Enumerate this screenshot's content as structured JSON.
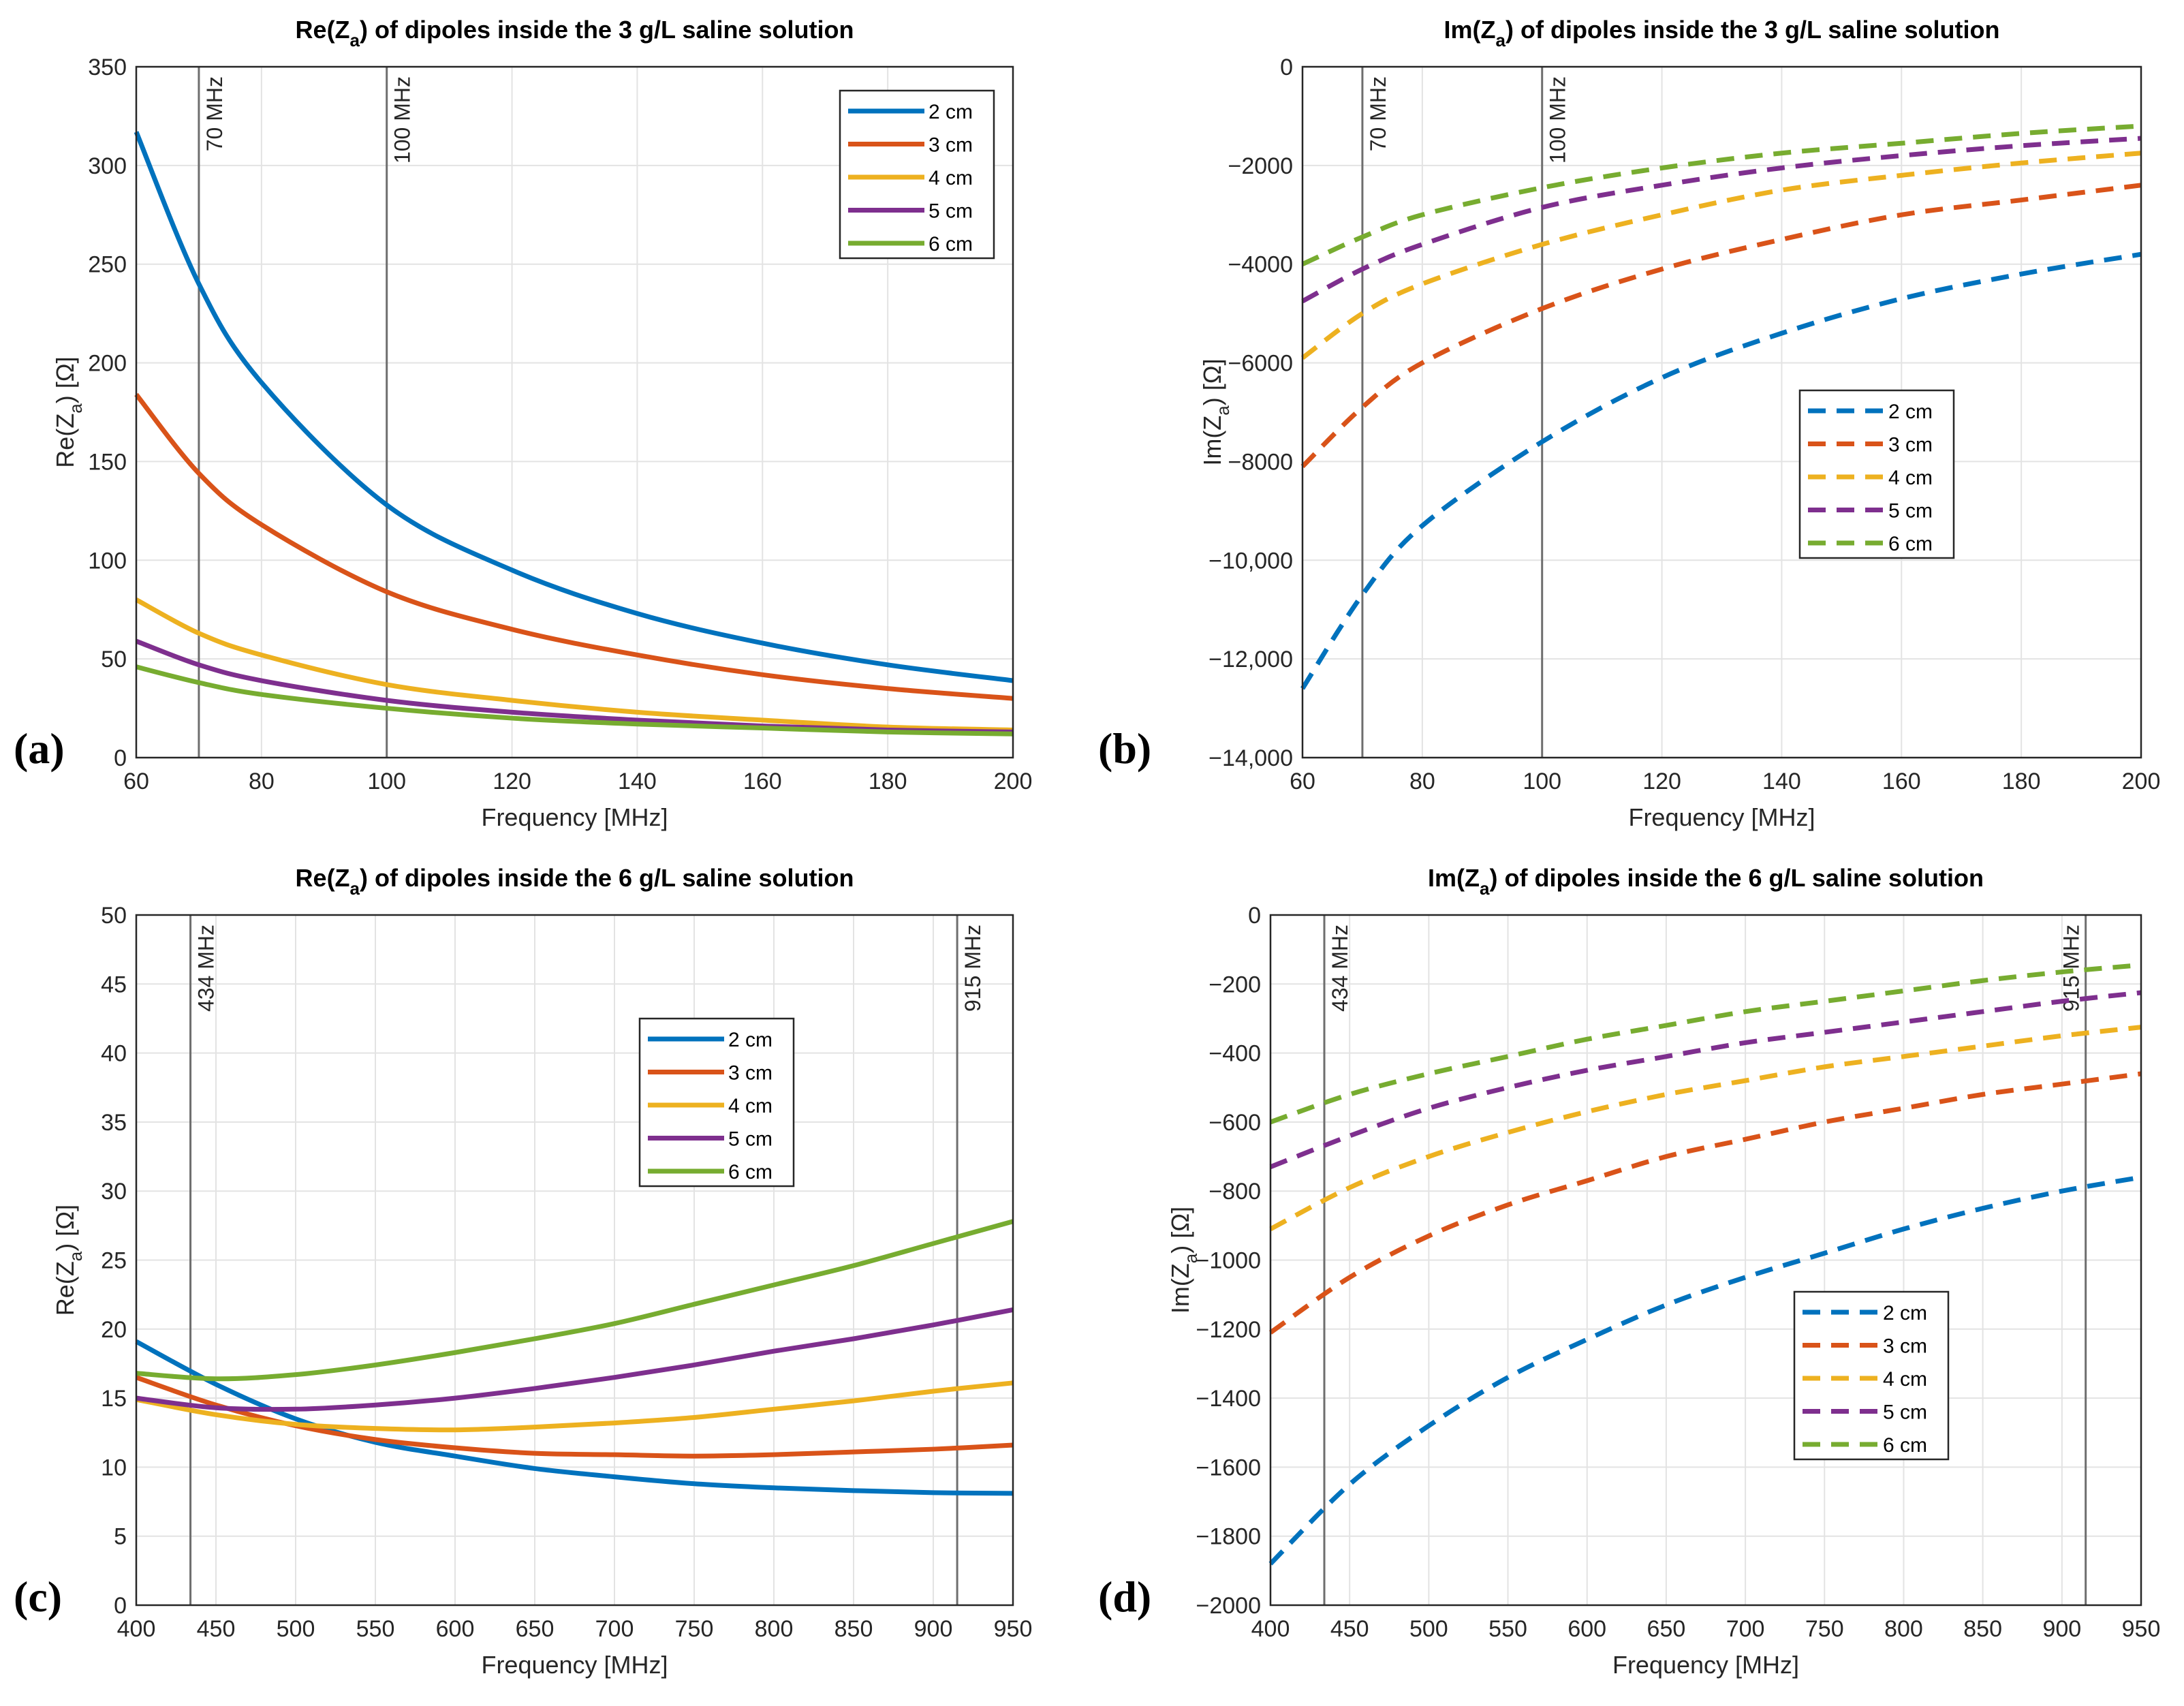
{
  "chart_data": [
    {
      "type": "line",
      "panel_label": "(a)",
      "title": {
        "pre": "Re(Z",
        "sub": "a",
        "post": ") of dipoles inside the 3 g/L saline solution"
      },
      "xlabel": "Frequency [MHz]",
      "ylabel": {
        "pre": "Re(Z",
        "sub": "a",
        "post": ") [Ω]"
      },
      "xlim": [
        60,
        200
      ],
      "ylim": [
        0,
        350
      ],
      "xticks": [
        60,
        80,
        100,
        120,
        140,
        160,
        180,
        200
      ],
      "xtick_labels": [
        "60",
        "80",
        "100",
        "120",
        "140",
        "160",
        "180",
        "200"
      ],
      "yticks": [
        0,
        50,
        100,
        150,
        200,
        250,
        300,
        350
      ],
      "ytick_labels": [
        "0",
        "50",
        "100",
        "150",
        "200",
        "250",
        "300",
        "350"
      ],
      "grid": true,
      "legend_position": "top-right",
      "line_style": "solid",
      "markers": [
        {
          "x": 70,
          "label": "70 MHz"
        },
        {
          "x": 100,
          "label": "100 MHz"
        }
      ],
      "x": [
        60,
        70,
        80,
        100,
        120,
        140,
        160,
        180,
        200
      ],
      "series": [
        {
          "name": "2 cm",
          "color": "#0072BD",
          "values": [
            317,
            240,
            190,
            128,
            95,
            73,
            58,
            47,
            39
          ]
        },
        {
          "name": "3 cm",
          "color": "#D95319",
          "values": [
            184,
            144,
            118,
            84,
            65,
            52,
            42,
            35,
            30
          ]
        },
        {
          "name": "4 cm",
          "color": "#EDB120",
          "values": [
            80,
            63,
            52,
            37,
            29,
            23,
            19,
            15.5,
            14
          ]
        },
        {
          "name": "5 cm",
          "color": "#7E2F8E",
          "values": [
            59,
            47,
            39,
            29,
            23,
            19,
            16,
            14,
            13
          ]
        },
        {
          "name": "6 cm",
          "color": "#77AC30",
          "values": [
            46,
            38,
            32,
            25,
            20,
            17,
            15,
            13,
            12
          ]
        }
      ]
    },
    {
      "type": "line",
      "panel_label": "(b)",
      "title": {
        "pre": "Im(Z",
        "sub": "a",
        "post": ") of dipoles inside the 3 g/L saline solution"
      },
      "xlabel": "Frequency [MHz]",
      "ylabel": {
        "pre": "Im(Z",
        "sub": "a",
        "post": ") [Ω]"
      },
      "xlim": [
        60,
        200
      ],
      "ylim": [
        -14000,
        0
      ],
      "xticks": [
        60,
        80,
        100,
        120,
        140,
        160,
        180,
        200
      ],
      "xtick_labels": [
        "60",
        "80",
        "100",
        "120",
        "140",
        "160",
        "180",
        "200"
      ],
      "yticks": [
        -14000,
        -12000,
        -10000,
        -8000,
        -6000,
        -4000,
        -2000,
        0
      ],
      "ytick_labels": [
        "−14,000",
        "−12,000",
        "−10,000",
        "−8000",
        "−6000",
        "−4000",
        "−2000",
        "0"
      ],
      "grid": true,
      "legend_position": "center",
      "line_style": "dashed",
      "markers": [
        {
          "x": 70,
          "label": "70 MHz"
        },
        {
          "x": 100,
          "label": "100 MHz"
        }
      ],
      "x": [
        60,
        70,
        80,
        100,
        120,
        140,
        160,
        180,
        200
      ],
      "series": [
        {
          "name": "2 cm",
          "color": "#0072BD",
          "values": [
            -12600,
            -10700,
            -9300,
            -7600,
            -6300,
            -5400,
            -4700,
            -4200,
            -3800
          ]
        },
        {
          "name": "3 cm",
          "color": "#D95319",
          "values": [
            -8100,
            -6900,
            -6000,
            -4900,
            -4100,
            -3500,
            -3000,
            -2700,
            -2400
          ]
        },
        {
          "name": "4 cm",
          "color": "#EDB120",
          "values": [
            -5900,
            -5000,
            -4400,
            -3600,
            -3000,
            -2500,
            -2200,
            -1950,
            -1750
          ]
        },
        {
          "name": "5 cm",
          "color": "#7E2F8E",
          "values": [
            -4750,
            -4100,
            -3600,
            -2850,
            -2400,
            -2050,
            -1800,
            -1600,
            -1450
          ]
        },
        {
          "name": "6 cm",
          "color": "#77AC30",
          "values": [
            -4000,
            -3450,
            -3000,
            -2450,
            -2050,
            -1750,
            -1550,
            -1350,
            -1200
          ]
        }
      ]
    },
    {
      "type": "line",
      "panel_label": "(c)",
      "title": {
        "pre": "Re(Z",
        "sub": "a",
        "post": ") of dipoles inside the 6 g/L saline solution"
      },
      "xlabel": "Frequency [MHz]",
      "ylabel": {
        "pre": "Re(Z",
        "sub": "a",
        "post": ") [Ω]"
      },
      "xlim": [
        400,
        950
      ],
      "ylim": [
        0,
        50
      ],
      "xticks": [
        400,
        450,
        500,
        550,
        600,
        650,
        700,
        750,
        800,
        850,
        900,
        950
      ],
      "xtick_labels": [
        "400",
        "450",
        "500",
        "550",
        "600",
        "650",
        "700",
        "750",
        "800",
        "850",
        "900",
        "950"
      ],
      "yticks": [
        0,
        5,
        10,
        15,
        20,
        25,
        30,
        35,
        40,
        45,
        50
      ],
      "ytick_labels": [
        "0",
        "5",
        "10",
        "15",
        "20",
        "25",
        "30",
        "35",
        "40",
        "45",
        "50"
      ],
      "grid": true,
      "legend_position": "top-center",
      "line_style": "solid",
      "markers": [
        {
          "x": 434,
          "label": "434 MHz"
        },
        {
          "x": 915,
          "label": "915 MHz"
        }
      ],
      "x": [
        400,
        450,
        500,
        550,
        600,
        650,
        700,
        750,
        800,
        850,
        900,
        950
      ],
      "series": [
        {
          "name": "2 cm",
          "color": "#0072BD",
          "values": [
            19.1,
            16,
            13.5,
            11.8,
            10.8,
            9.9,
            9.3,
            8.8,
            8.5,
            8.3,
            8.15,
            8.1
          ]
        },
        {
          "name": "3 cm",
          "color": "#D95319",
          "values": [
            16.5,
            14.5,
            13,
            12,
            11.4,
            11,
            10.9,
            10.8,
            10.9,
            11.1,
            11.3,
            11.6
          ]
        },
        {
          "name": "4 cm",
          "color": "#EDB120",
          "values": [
            14.9,
            13.8,
            13.1,
            12.8,
            12.7,
            12.9,
            13.2,
            13.6,
            14.2,
            14.8,
            15.5,
            16.1
          ]
        },
        {
          "name": "5 cm",
          "color": "#7E2F8E",
          "values": [
            15,
            14.3,
            14.2,
            14.5,
            15,
            15.7,
            16.5,
            17.4,
            18.4,
            19.3,
            20.3,
            21.4
          ]
        },
        {
          "name": "6 cm",
          "color": "#77AC30",
          "values": [
            16.8,
            16.4,
            16.7,
            17.4,
            18.3,
            19.3,
            20.4,
            21.8,
            23.2,
            24.6,
            26.2,
            27.8
          ]
        }
      ]
    },
    {
      "type": "line",
      "panel_label": "(d)",
      "title": {
        "pre": "Im(Z",
        "sub": "a",
        "post": ") of dipoles inside the 6 g/L saline solution"
      },
      "xlabel": "Frequency [MHz]",
      "ylabel": {
        "pre": "Im(Z",
        "sub": "a",
        "post": ") [Ω]"
      },
      "xlim": [
        400,
        950
      ],
      "ylim": [
        -2000,
        0
      ],
      "xticks": [
        400,
        450,
        500,
        550,
        600,
        650,
        700,
        750,
        800,
        850,
        900,
        950
      ],
      "xtick_labels": [
        "400",
        "450",
        "500",
        "550",
        "600",
        "650",
        "700",
        "750",
        "800",
        "850",
        "900",
        "950"
      ],
      "yticks": [
        -2000,
        -1800,
        -1600,
        -1400,
        -1200,
        -1000,
        -800,
        -600,
        -400,
        -200,
        0
      ],
      "ytick_labels": [
        "−2000",
        "−1800",
        "−1600",
        "−1400",
        "−1200",
        "−1000",
        "−800",
        "−600",
        "−400",
        "−200",
        "0"
      ],
      "grid": true,
      "legend_position": "bottom-center",
      "line_style": "dashed",
      "markers": [
        {
          "x": 434,
          "label": "434 MHz"
        },
        {
          "x": 915,
          "label": "915 MHz"
        }
      ],
      "x": [
        400,
        450,
        500,
        550,
        600,
        650,
        700,
        750,
        800,
        850,
        900,
        950
      ],
      "series": [
        {
          "name": "2 cm",
          "color": "#0072BD",
          "values": [
            -1880,
            -1650,
            -1480,
            -1340,
            -1230,
            -1130,
            -1050,
            -980,
            -910,
            -850,
            -800,
            -760
          ]
        },
        {
          "name": "3 cm",
          "color": "#D95319",
          "values": [
            -1210,
            -1050,
            -930,
            -840,
            -770,
            -700,
            -650,
            -600,
            -560,
            -520,
            -490,
            -460
          ]
        },
        {
          "name": "4 cm",
          "color": "#EDB120",
          "values": [
            -910,
            -790,
            -700,
            -630,
            -570,
            -520,
            -480,
            -440,
            -410,
            -380,
            -350,
            -325
          ]
        },
        {
          "name": "5 cm",
          "color": "#7E2F8E",
          "values": [
            -730,
            -640,
            -560,
            -500,
            -450,
            -410,
            -370,
            -340,
            -310,
            -280,
            -250,
            -225
          ]
        },
        {
          "name": "6 cm",
          "color": "#77AC30",
          "values": [
            -600,
            -520,
            -460,
            -410,
            -360,
            -320,
            -280,
            -250,
            -220,
            -190,
            -165,
            -145
          ]
        }
      ]
    }
  ]
}
